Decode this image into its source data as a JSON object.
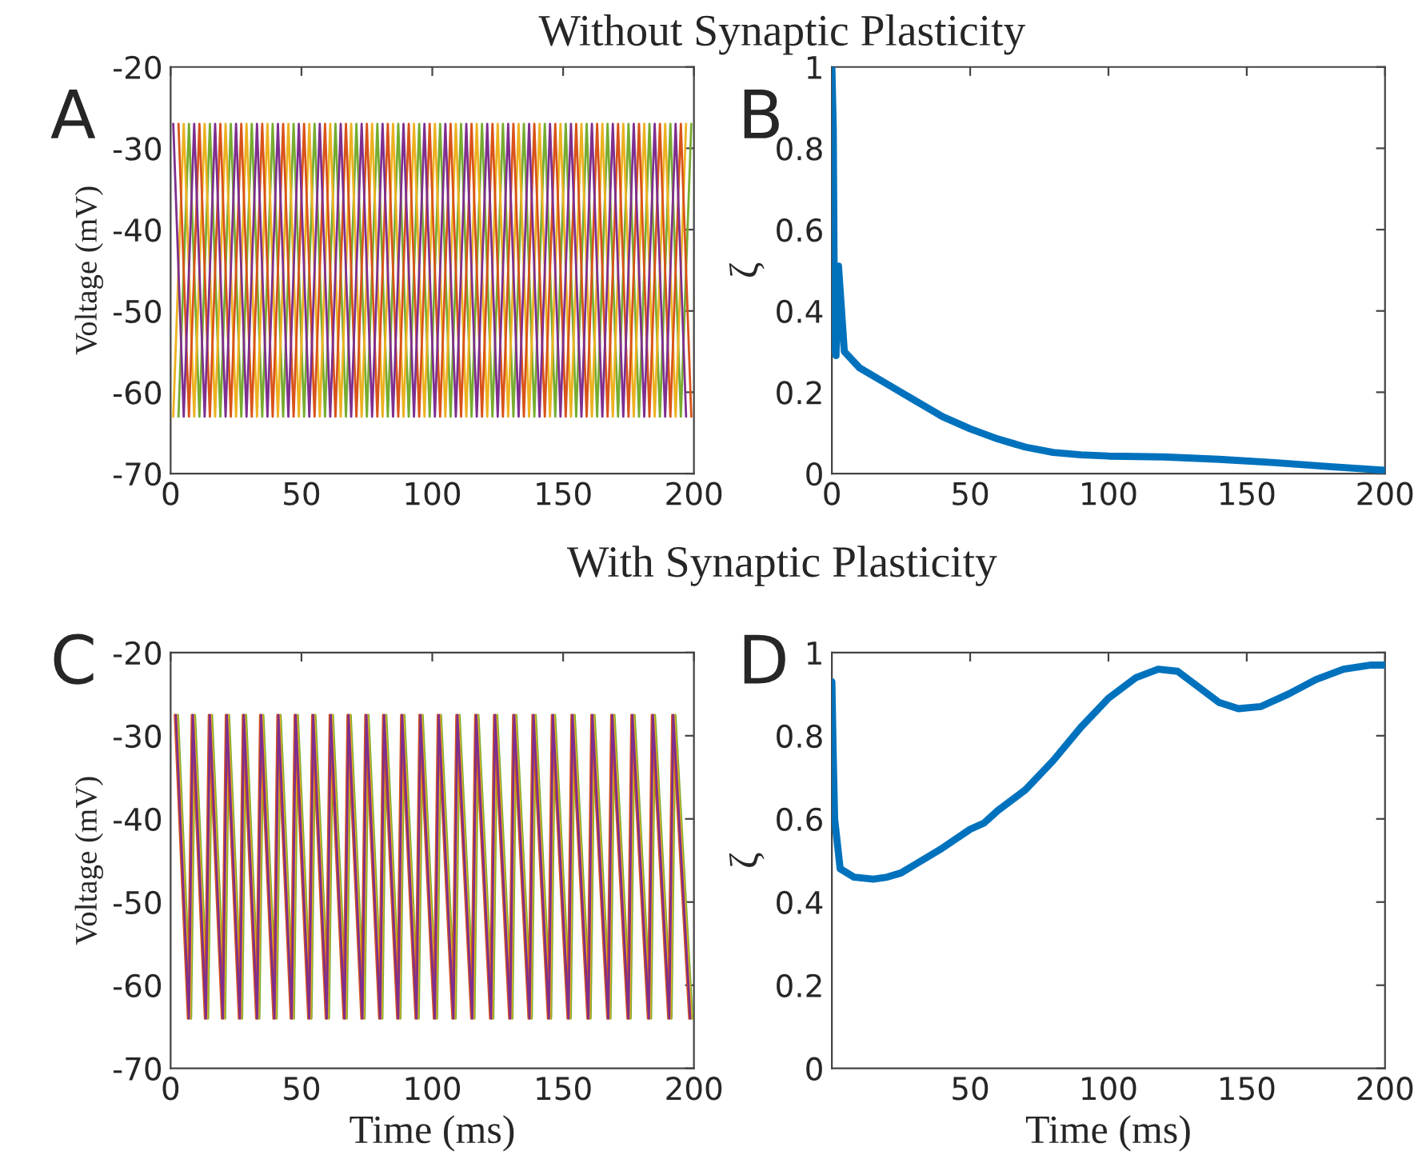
{
  "chart_data": [
    {
      "type": "line",
      "title": "Without Synaptic Plasticity",
      "ylabel": "Voltage (mV)",
      "annotations": [
        "A"
      ],
      "xlim": [
        0,
        200
      ],
      "xticks": [
        0,
        50,
        100,
        150,
        200
      ],
      "ylim": [
        -70,
        -20
      ],
      "yticks": [
        -70,
        -60,
        -50,
        -40,
        -30,
        -20
      ],
      "grid": false,
      "legend": false,
      "marker": "none",
      "line_style": "solid",
      "series": [
        {
          "color": "#7e2f8e",
          "x": [
            1,
            5,
            9,
            13,
            17,
            21,
            25,
            29,
            33,
            37,
            41,
            45,
            49,
            53,
            57,
            61,
            65,
            69,
            73,
            77,
            81,
            85,
            89,
            93,
            97,
            101,
            105,
            109,
            113,
            117,
            121,
            125,
            129,
            133,
            137,
            141,
            145,
            149,
            153,
            157,
            161,
            165,
            169,
            173,
            177,
            181,
            185,
            189,
            193,
            197
          ],
          "values": [
            -27,
            -63,
            -27,
            -63,
            -27,
            -63,
            -27,
            -63,
            -27,
            -63,
            -27,
            -63,
            -27,
            -63,
            -27,
            -63,
            -27,
            -63,
            -27,
            -63,
            -27,
            -63,
            -27,
            -63,
            -27,
            -63,
            -27,
            -63,
            -27,
            -63,
            -27,
            -63,
            -27,
            -63,
            -27,
            -63,
            -27,
            -63,
            -27,
            -63,
            -27,
            -63,
            -27,
            -63,
            -27,
            -63,
            -27,
            -63,
            -27,
            -63
          ]
        },
        {
          "color": "#d95319",
          "x": [
            3,
            7,
            11,
            15,
            19,
            23,
            27,
            31,
            35,
            39,
            43,
            47,
            51,
            55,
            59,
            63,
            67,
            71,
            75,
            79,
            83,
            87,
            91,
            95,
            99,
            103,
            107,
            111,
            115,
            119,
            123,
            127,
            131,
            135,
            139,
            143,
            147,
            151,
            155,
            159,
            163,
            167,
            171,
            175,
            179,
            183,
            187,
            191,
            195,
            199
          ],
          "values": [
            -27,
            -63,
            -27,
            -63,
            -27,
            -63,
            -27,
            -63,
            -27,
            -63,
            -27,
            -63,
            -27,
            -63,
            -27,
            -63,
            -27,
            -63,
            -27,
            -63,
            -27,
            -63,
            -27,
            -63,
            -27,
            -63,
            -27,
            -63,
            -27,
            -63,
            -27,
            -63,
            -27,
            -63,
            -27,
            -63,
            -27,
            -63,
            -27,
            -63,
            -27,
            -63,
            -27,
            -63,
            -27,
            -63,
            -27,
            -63,
            -27,
            -63
          ]
        },
        {
          "color": "#edb120",
          "x": [
            1,
            5,
            9,
            13,
            17,
            21,
            25,
            29,
            33,
            37,
            41,
            45,
            49,
            53,
            57,
            61,
            65,
            69,
            73,
            77,
            81,
            85,
            89,
            93,
            97,
            101,
            105,
            109,
            113,
            117,
            121,
            125,
            129,
            133,
            137,
            141,
            145,
            149,
            153,
            157,
            161,
            165,
            169,
            173,
            177,
            181,
            185,
            189,
            193,
            197
          ],
          "values": [
            -63,
            -27,
            -63,
            -27,
            -63,
            -27,
            -63,
            -27,
            -63,
            -27,
            -63,
            -27,
            -63,
            -27,
            -63,
            -27,
            -63,
            -27,
            -63,
            -27,
            -63,
            -27,
            -63,
            -27,
            -63,
            -27,
            -63,
            -27,
            -63,
            -27,
            -63,
            -27,
            -63,
            -27,
            -63,
            -27,
            -63,
            -27,
            -63,
            -27,
            -63,
            -27,
            -63,
            -27,
            -63,
            -27,
            -63,
            -27,
            -63,
            -27
          ]
        },
        {
          "color": "#77ac30",
          "x": [
            3,
            7,
            11,
            15,
            19,
            23,
            27,
            31,
            35,
            39,
            43,
            47,
            51,
            55,
            59,
            63,
            67,
            71,
            75,
            79,
            83,
            87,
            91,
            95,
            99,
            103,
            107,
            111,
            115,
            119,
            123,
            127,
            131,
            135,
            139,
            143,
            147,
            151,
            155,
            159,
            163,
            167,
            171,
            175,
            179,
            183,
            187,
            191,
            195,
            199
          ],
          "values": [
            -63,
            -27,
            -63,
            -27,
            -63,
            -27,
            -63,
            -27,
            -63,
            -27,
            -63,
            -27,
            -63,
            -27,
            -63,
            -27,
            -63,
            -27,
            -63,
            -27,
            -63,
            -27,
            -63,
            -27,
            -63,
            -27,
            -63,
            -27,
            -63,
            -27,
            -63,
            -27,
            -63,
            -27,
            -63,
            -27,
            -63,
            -27,
            -63,
            -27,
            -63,
            -27,
            -63,
            -27,
            -63,
            -27,
            -63,
            -27,
            -63,
            -27
          ]
        }
      ]
    },
    {
      "type": "line",
      "ylabel": "ζ",
      "annotations": [
        "B"
      ],
      "xlim": [
        0,
        200
      ],
      "xticks": [
        0,
        50,
        100,
        150,
        200
      ],
      "ylim": [
        0,
        1
      ],
      "yticks": [
        0,
        0.2,
        0.4,
        0.6,
        0.8,
        1
      ],
      "grid": false,
      "legend": false,
      "marker": "none",
      "line_style": "solid",
      "series": [
        {
          "color": "#0072bd",
          "x": [
            0,
            0.5,
            1,
            1.5,
            2.4,
            3,
            4.5,
            10,
            20,
            30,
            40,
            50,
            60,
            70,
            80,
            90,
            100,
            120,
            140,
            160,
            180,
            200
          ],
          "values": [
            1,
            0.85,
            0.3,
            0.29,
            0.51,
            0.45,
            0.3,
            0.26,
            0.22,
            0.18,
            0.14,
            0.11,
            0.085,
            0.065,
            0.052,
            0.046,
            0.043,
            0.041,
            0.035,
            0.027,
            0.017,
            0.008
          ]
        }
      ]
    },
    {
      "type": "line",
      "title": "With Synaptic Plasticity",
      "xlabel": "Time (ms)",
      "ylabel": "Voltage (mV)",
      "annotations": [
        "C"
      ],
      "xlim": [
        0,
        200
      ],
      "xticks": [
        0,
        50,
        100,
        150,
        200
      ],
      "ylim": [
        -70,
        -20
      ],
      "yticks": [
        -70,
        -60,
        -50,
        -40,
        -30,
        -20
      ],
      "grid": false,
      "legend": false,
      "marker": "none",
      "line_style": "solid",
      "series": [
        {
          "color": "#7e2f8e",
          "x": [
            2,
            7,
            8.5,
            13.5,
            15,
            20,
            21.5,
            26.5,
            28,
            33.1,
            34.6,
            39.7,
            41.2,
            46.3,
            47.8,
            53,
            54.5,
            59.7,
            61.2,
            66.5,
            68,
            73.3,
            74.8,
            80.1,
            81.6,
            87,
            88.5,
            94,
            95.5,
            101,
            102.5,
            108.1,
            109.6,
            115.3,
            116.8,
            122.5,
            124,
            129.8,
            131.3,
            137.2,
            138.7,
            144.6,
            146.1,
            152.1,
            153.6,
            159.7,
            161.2,
            167.3,
            168.8,
            175,
            176.5,
            182.8,
            184.3,
            190.6,
            192.1,
            198.6
          ],
          "values": [
            -27.5,
            -64,
            -27.5,
            -64,
            -27.5,
            -64,
            -27.5,
            -64,
            -27.5,
            -64,
            -27.5,
            -64,
            -27.5,
            -64,
            -27.5,
            -64,
            -27.5,
            -64,
            -27.5,
            -64,
            -27.5,
            -64,
            -27.5,
            -64,
            -27.5,
            -64,
            -27.5,
            -64,
            -27.5,
            -64,
            -27.5,
            -64,
            -27.5,
            -64,
            -27.5,
            -64,
            -27.5,
            -64,
            -27.5,
            -64,
            -27.5,
            -64,
            -27.5,
            -64,
            -27.5,
            -64,
            -27.5,
            -64,
            -27.5,
            -64,
            -27.5,
            -64,
            -27.5,
            -64,
            -27.5,
            -64
          ]
        },
        {
          "color": "#d95319",
          "x": [
            1.6,
            6.6,
            8.1,
            13.1,
            14.6,
            19.6,
            21.1,
            26.1,
            27.6,
            32.7,
            34.2,
            39.3,
            40.8,
            45.9,
            47.4,
            52.6,
            54.1,
            59.3,
            60.8,
            66.1,
            67.6,
            72.9,
            74.4,
            79.7,
            81.2,
            86.6,
            88.1,
            93.6,
            95.1,
            100.6,
            102.1,
            107.7,
            109.2,
            114.9,
            116.4,
            122.1,
            123.6,
            129.4,
            130.9,
            136.8,
            138.3,
            144.2,
            145.7,
            151.7,
            153.2,
            159.3,
            160.8,
            166.9,
            168.4,
            174.6,
            176.1,
            182.4,
            183.9,
            190.2,
            191.7,
            198.2
          ],
          "values": [
            -27.5,
            -64,
            -27.5,
            -64,
            -27.5,
            -64,
            -27.5,
            -64,
            -27.5,
            -64,
            -27.5,
            -64,
            -27.5,
            -64,
            -27.5,
            -64,
            -27.5,
            -64,
            -27.5,
            -64,
            -27.5,
            -64,
            -27.5,
            -64,
            -27.5,
            -64,
            -27.5,
            -64,
            -27.5,
            -64,
            -27.5,
            -64,
            -27.5,
            -64,
            -27.5,
            -64,
            -27.5,
            -64,
            -27.5,
            -64,
            -27.5,
            -64,
            -27.5,
            -64,
            -27.5,
            -64,
            -27.5,
            -64,
            -27.5,
            -64,
            -27.5,
            -64,
            -27.5,
            -64,
            -27.5,
            -64
          ]
        },
        {
          "color": "#edb120",
          "x": [
            2.4,
            7.4,
            8.9,
            13.9,
            15.4,
            20.4,
            21.9,
            26.9,
            28.4,
            33.5,
            35,
            40.1,
            41.6,
            46.7,
            48.2,
            53.4,
            54.9,
            60.1,
            61.6,
            66.9,
            68.4,
            73.7,
            75.2,
            80.5,
            82,
            87.4,
            88.9,
            94.4,
            95.9,
            101.4,
            102.9,
            108.5,
            110,
            115.7,
            117.2,
            122.9,
            124.4,
            130.2,
            131.7,
            137.6,
            139.1,
            145,
            146.5,
            152.5,
            154,
            160.1,
            161.6,
            167.7,
            169.2,
            175.4,
            176.9,
            183.2,
            184.7,
            191,
            192.5,
            199
          ],
          "values": [
            -27.5,
            -64,
            -27.5,
            -64,
            -27.5,
            -64,
            -27.5,
            -64,
            -27.5,
            -64,
            -27.5,
            -64,
            -27.5,
            -64,
            -27.5,
            -64,
            -27.5,
            -64,
            -27.5,
            -64,
            -27.5,
            -64,
            -27.5,
            -64,
            -27.5,
            -64,
            -27.5,
            -64,
            -27.5,
            -64,
            -27.5,
            -64,
            -27.5,
            -64,
            -27.5,
            -64,
            -27.5,
            -64,
            -27.5,
            -64,
            -27.5,
            -64,
            -27.5,
            -64,
            -27.5,
            -64,
            -27.5,
            -64,
            -27.5,
            -64,
            -27.5,
            -64,
            -27.5,
            -64,
            -27.5,
            -64
          ]
        },
        {
          "color": "#77ac30",
          "x": [
            2.8,
            7.8,
            9.3,
            14.3,
            15.8,
            20.8,
            22.3,
            27.3,
            28.8,
            33.9,
            35.4,
            40.5,
            42,
            47.1,
            48.6,
            53.8,
            55.3,
            60.5,
            62,
            67.3,
            68.8,
            74.1,
            75.6,
            80.9,
            82.4,
            87.8,
            89.3,
            94.8,
            96.3,
            101.8,
            103.3,
            108.9,
            110.4,
            116.1,
            117.6,
            123.3,
            124.8,
            130.6,
            132.1,
            138,
            139.5,
            145.4,
            146.9,
            152.9,
            154.4,
            160.5,
            162,
            168.1,
            169.6,
            175.8,
            177.3,
            183.6,
            185.1,
            191.4,
            192.9,
            199.4
          ],
          "values": [
            -27.5,
            -64,
            -27.5,
            -64,
            -27.5,
            -64,
            -27.5,
            -64,
            -27.5,
            -64,
            -27.5,
            -64,
            -27.5,
            -64,
            -27.5,
            -64,
            -27.5,
            -64,
            -27.5,
            -64,
            -27.5,
            -64,
            -27.5,
            -64,
            -27.5,
            -64,
            -27.5,
            -64,
            -27.5,
            -64,
            -27.5,
            -64,
            -27.5,
            -64,
            -27.5,
            -64,
            -27.5,
            -64,
            -27.5,
            -64,
            -27.5,
            -64,
            -27.5,
            -64,
            -27.5,
            -64,
            -27.5,
            -64,
            -27.5,
            -64,
            -27.5,
            -64,
            -27.5,
            -64,
            -27.5,
            -64
          ]
        }
      ]
    },
    {
      "type": "line",
      "xlabel": "Time (ms)",
      "ylabel": "ζ",
      "annotations": [
        "D"
      ],
      "xlim": [
        0,
        200
      ],
      "xticks": [
        50,
        100,
        150,
        200
      ],
      "ylim": [
        0,
        1
      ],
      "yticks": [
        0,
        0.2,
        0.4,
        0.6,
        0.8,
        1
      ],
      "grid": false,
      "legend": false,
      "marker": "none",
      "line_style": "solid",
      "series": [
        {
          "color": "#0072bd",
          "x": [
            0,
            0.5,
            1,
            3,
            8,
            15,
            20,
            25,
            30,
            40,
            50,
            55,
            60,
            70,
            80,
            90,
            100,
            110,
            118,
            125,
            130,
            140,
            147,
            155,
            165,
            175,
            185,
            195,
            200
          ],
          "values": [
            0.93,
            0.75,
            0.6,
            0.48,
            0.46,
            0.455,
            0.46,
            0.47,
            0.49,
            0.53,
            0.575,
            0.59,
            0.62,
            0.67,
            0.74,
            0.82,
            0.89,
            0.94,
            0.96,
            0.955,
            0.93,
            0.88,
            0.865,
            0.87,
            0.9,
            0.935,
            0.96,
            0.97,
            0.97
          ]
        }
      ]
    }
  ]
}
